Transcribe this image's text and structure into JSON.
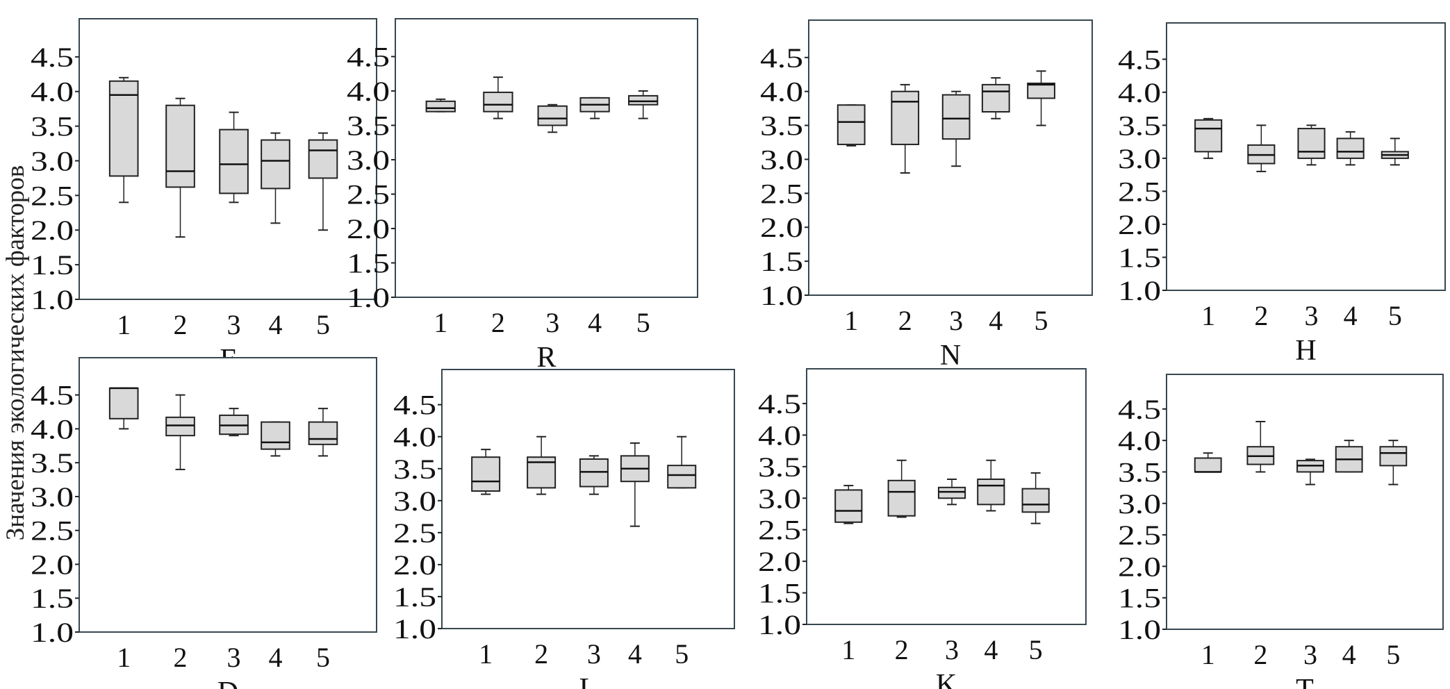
{
  "chart_data": {
    "type": "box",
    "ylabel": "Значения экологических факторов",
    "ylim": [
      1.0,
      5.05
    ],
    "yticks": [
      "1.0",
      "1.5",
      "2.0",
      "2.5",
      "3.0",
      "3.5",
      "4.0",
      "4.5"
    ],
    "categories": [
      "1",
      "2",
      "3",
      "4",
      "5"
    ],
    "box_fill": "#d9d9d9",
    "frame_color": "#37474f",
    "panels": [
      {
        "title": "F",
        "boxes": [
          [
            2.4,
            2.78,
            3.95,
            4.15,
            4.2
          ],
          [
            1.9,
            2.62,
            2.85,
            3.8,
            3.9
          ],
          [
            2.4,
            2.53,
            2.95,
            3.45,
            3.7
          ],
          [
            2.1,
            2.6,
            3.0,
            3.3,
            3.4
          ],
          [
            2.0,
            2.75,
            3.15,
            3.3,
            3.4
          ]
        ]
      },
      {
        "title": "R",
        "boxes": [
          [
            3.7,
            3.7,
            3.75,
            3.85,
            3.88
          ],
          [
            3.6,
            3.7,
            3.8,
            3.98,
            4.2
          ],
          [
            3.4,
            3.5,
            3.6,
            3.78,
            3.8
          ],
          [
            3.6,
            3.7,
            3.8,
            3.9,
            3.9
          ],
          [
            3.6,
            3.8,
            3.85,
            3.93,
            4.0
          ]
        ]
      },
      {
        "title": "N",
        "boxes": [
          [
            3.2,
            3.22,
            3.55,
            3.8,
            3.8
          ],
          [
            2.8,
            3.22,
            3.85,
            4.0,
            4.1
          ],
          [
            2.9,
            3.3,
            3.6,
            3.95,
            4.0
          ],
          [
            3.6,
            3.7,
            4.0,
            4.1,
            4.2
          ],
          [
            3.5,
            3.9,
            4.1,
            4.12,
            4.3
          ]
        ]
      },
      {
        "title": "H",
        "boxes": [
          [
            3.0,
            3.1,
            3.45,
            3.58,
            3.6
          ],
          [
            2.8,
            2.92,
            3.05,
            3.2,
            3.5
          ],
          [
            2.9,
            3.0,
            3.1,
            3.45,
            3.5
          ],
          [
            2.9,
            3.0,
            3.1,
            3.3,
            3.4
          ],
          [
            2.9,
            3.0,
            3.05,
            3.1,
            3.3
          ]
        ]
      },
      {
        "title": "D",
        "boxes": [
          [
            4.0,
            4.15,
            4.6,
            4.6,
            4.6
          ],
          [
            3.4,
            3.9,
            4.05,
            4.17,
            4.5
          ],
          [
            3.9,
            3.92,
            4.05,
            4.2,
            4.3
          ],
          [
            3.6,
            3.7,
            3.8,
            4.1,
            4.1
          ],
          [
            3.6,
            3.77,
            3.85,
            4.1,
            4.3
          ]
        ]
      },
      {
        "title": "L",
        "boxes": [
          [
            3.1,
            3.15,
            3.3,
            3.68,
            3.8
          ],
          [
            3.1,
            3.2,
            3.6,
            3.68,
            4.0
          ],
          [
            3.1,
            3.22,
            3.45,
            3.65,
            3.7
          ],
          [
            2.6,
            3.3,
            3.5,
            3.7,
            3.9
          ],
          [
            3.2,
            3.2,
            3.4,
            3.55,
            4.0
          ]
        ]
      },
      {
        "title": "K",
        "boxes": [
          [
            2.6,
            2.62,
            2.8,
            3.13,
            3.2
          ],
          [
            2.7,
            2.72,
            3.1,
            3.28,
            3.6
          ],
          [
            2.9,
            3.0,
            3.1,
            3.17,
            3.3
          ],
          [
            2.8,
            2.9,
            3.2,
            3.3,
            3.6
          ],
          [
            2.6,
            2.78,
            2.9,
            3.15,
            3.4
          ]
        ]
      },
      {
        "title": "T",
        "boxes": [
          [
            3.5,
            3.5,
            3.5,
            3.72,
            3.8
          ],
          [
            3.5,
            3.62,
            3.75,
            3.9,
            4.3
          ],
          [
            3.3,
            3.5,
            3.6,
            3.68,
            3.7
          ],
          [
            3.5,
            3.5,
            3.7,
            3.9,
            4.0
          ],
          [
            3.3,
            3.6,
            3.8,
            3.9,
            4.0
          ]
        ]
      }
    ]
  }
}
